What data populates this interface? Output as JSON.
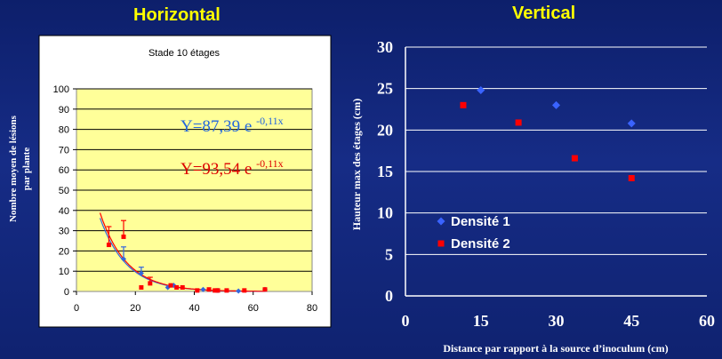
{
  "titles": {
    "left": "Horizontal",
    "right": "Vertical"
  },
  "chart_data": [
    {
      "type": "scatter",
      "title": "Stade 10 étages",
      "ylabel_lines": [
        "Nombre moyen de lésions",
        "par plante"
      ],
      "xlabel": "",
      "xlim": [
        0,
        80
      ],
      "ylim": [
        0,
        100
      ],
      "xticks": [
        "0",
        "20",
        "40",
        "60",
        "80"
      ],
      "yticks": [
        "0",
        "10",
        "20",
        "30",
        "40",
        "50",
        "60",
        "70",
        "80",
        "90",
        "100"
      ],
      "grid": true,
      "colors": {
        "blue": "#3366dd",
        "red": "#ff0000",
        "plot_bg": "#ffff99"
      },
      "series": [
        {
          "name": "blue",
          "color": "#3366dd",
          "equation": {
            "main": "Y=87,39 e ",
            "exp": "-0,11x"
          },
          "points": [
            [
              16,
              16
            ],
            [
              22,
              9
            ],
            [
              31,
              2
            ],
            [
              33,
              3
            ],
            [
              43,
              1
            ],
            [
              48,
              0.5
            ],
            [
              55,
              0.2
            ],
            [
              64,
              1
            ]
          ],
          "errors": [
            [
              16,
              6
            ],
            [
              22,
              3
            ]
          ]
        },
        {
          "name": "red",
          "color": "#ff0000",
          "equation": {
            "main": "Y=93,54 e ",
            "exp": "-0,11x"
          },
          "points": [
            [
              11,
              23
            ],
            [
              16,
              27
            ],
            [
              22,
              2
            ],
            [
              25,
              4
            ],
            [
              32,
              3
            ],
            [
              34,
              2
            ],
            [
              36,
              2
            ],
            [
              41,
              0.5
            ],
            [
              45,
              1
            ],
            [
              47,
              0.5
            ],
            [
              48,
              0.5
            ],
            [
              51,
              0.5
            ],
            [
              57,
              0.5
            ],
            [
              64,
              1
            ]
          ],
          "errors": [
            [
              11,
              9
            ],
            [
              16,
              8
            ],
            [
              25,
              3
            ]
          ]
        }
      ]
    },
    {
      "type": "scatter",
      "title": "",
      "xlabel": "Distance par rapport à la source d’inoculum (cm)",
      "ylabel": "Hauteur max des étages (cm)",
      "xlim": [
        0,
        60
      ],
      "ylim": [
        0,
        30
      ],
      "xticks": [
        "0",
        "15",
        "30",
        "45",
        "60"
      ],
      "yticks": [
        "0",
        "5",
        "10",
        "15",
        "20",
        "25",
        "30"
      ],
      "grid": true,
      "legend_position": "bottom-left",
      "series": [
        {
          "name": "Densité 1",
          "color": "#3a63ff",
          "marker": "diamond",
          "points": [
            [
              15,
              24.8
            ],
            [
              30,
              23
            ],
            [
              45,
              20.8
            ]
          ]
        },
        {
          "name": "Densité 2",
          "color": "#ff0000",
          "marker": "square",
          "points": [
            [
              11.5,
              23
            ],
            [
              22.5,
              20.9
            ],
            [
              33.7,
              16.6
            ],
            [
              45,
              14.2
            ]
          ]
        }
      ]
    }
  ]
}
